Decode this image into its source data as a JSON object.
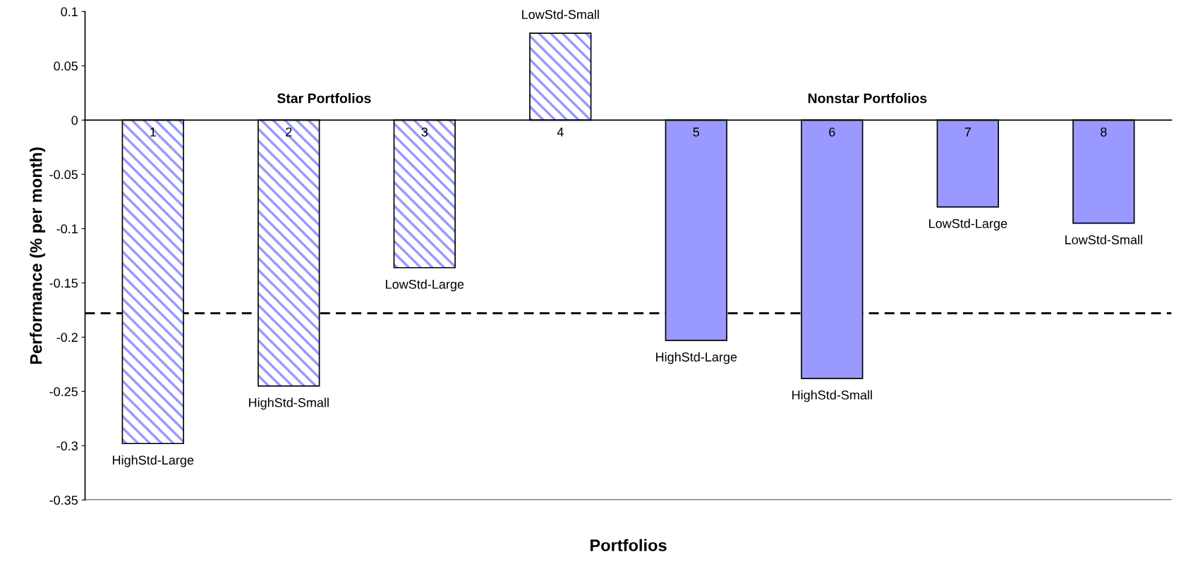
{
  "chart_data": {
    "type": "bar",
    "xlabel": "Portfolios",
    "ylabel": "Performance (% per month)",
    "categories": [
      "1",
      "2",
      "3",
      "4",
      "5",
      "6",
      "7",
      "8"
    ],
    "series": [
      {
        "color": "#9999ff",
        "values": [
          -0.298,
          -0.245,
          -0.136,
          0.08,
          null,
          null,
          null,
          null
        ]
      },
      {
        "color": "#9999ff",
        "values": [
          null,
          null,
          null,
          null,
          -0.203,
          -0.238,
          -0.08,
          -0.095
        ]
      }
    ],
    "ylim": [
      -0.35,
      0.1
    ],
    "yticks": [
      0.1,
      0.05,
      0,
      -0.05,
      -0.1,
      -0.15,
      -0.2,
      -0.25,
      -0.3,
      -0.35
    ],
    "grid": false,
    "legend": false,
    "ref_lines": [
      {
        "axis": "y",
        "value": -0.178,
        "color": "#000000",
        "line_style": "dashed"
      }
    ],
    "annotations": [
      "Star Portfolios",
      "Nonstar Portfolios",
      {
        "text": "HighStd-Large",
        "x": "1",
        "y": -0.298
      },
      {
        "text": "HighStd-Small",
        "x": "2",
        "y": -0.245
      },
      {
        "text": "LowStd-Large",
        "x": "3",
        "y": -0.136
      },
      {
        "text": "LowStd-Small",
        "x": "4",
        "y": 0.08
      },
      {
        "text": "HighStd-Large",
        "x": "5",
        "y": -0.203
      },
      {
        "text": "HighStd-Small",
        "x": "6",
        "y": -0.238
      },
      {
        "text": "LowStd-Large",
        "x": "7",
        "y": -0.08
      },
      {
        "text": "LowStd-Small",
        "x": "8",
        "y": -0.095
      }
    ]
  }
}
